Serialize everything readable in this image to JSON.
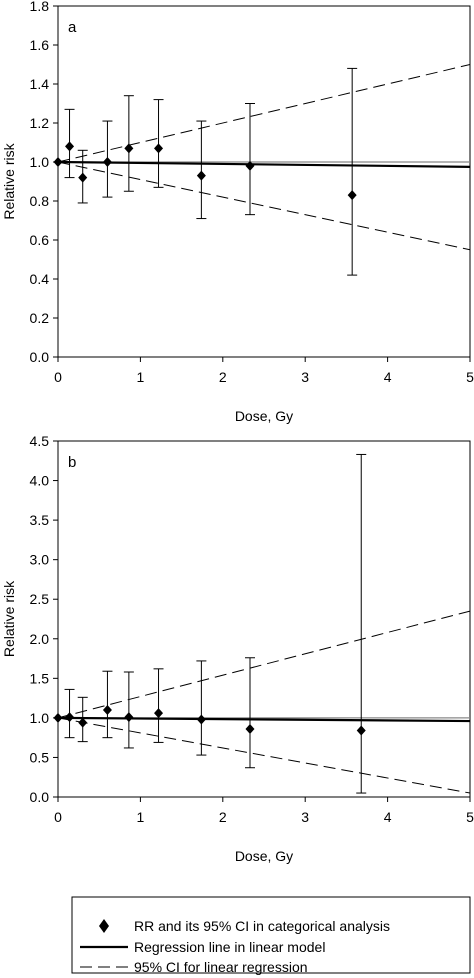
{
  "chart_data": [
    {
      "type": "scatter",
      "panel_label": "a",
      "xlabel": "Dose, Gy",
      "ylabel": "Relative risk",
      "xlim": [
        0,
        5
      ],
      "ylim": [
        0,
        1.8
      ],
      "x_ticks": [
        "0",
        "1",
        "2",
        "3",
        "4",
        "5"
      ],
      "y_ticks": [
        "0.0",
        "0.2",
        "0.4",
        "0.6",
        "0.8",
        "1.0",
        "1.2",
        "1.4",
        "1.6",
        "1.8"
      ],
      "grid": false,
      "categorical_points": [
        {
          "x": 0.0,
          "rr": 1.0,
          "lower": 1.0,
          "upper": 1.0
        },
        {
          "x": 0.14,
          "rr": 1.08,
          "lower": 0.92,
          "upper": 1.27
        },
        {
          "x": 0.3,
          "rr": 0.92,
          "lower": 0.79,
          "upper": 1.06
        },
        {
          "x": 0.6,
          "rr": 1.0,
          "lower": 0.82,
          "upper": 1.21
        },
        {
          "x": 0.86,
          "rr": 1.07,
          "lower": 0.85,
          "upper": 1.34
        },
        {
          "x": 1.22,
          "rr": 1.07,
          "lower": 0.87,
          "upper": 1.32
        },
        {
          "x": 1.74,
          "rr": 0.93,
          "lower": 0.71,
          "upper": 1.21
        },
        {
          "x": 2.33,
          "rr": 0.98,
          "lower": 0.73,
          "upper": 1.3
        },
        {
          "x": 3.57,
          "rr": 0.83,
          "lower": 0.42,
          "upper": 1.48
        }
      ],
      "reference_line": {
        "x": [
          0,
          5
        ],
        "y": [
          1.0,
          1.0
        ]
      },
      "regression_line": {
        "x": [
          0,
          5
        ],
        "y": [
          1.0,
          0.975
        ]
      },
      "ci_upper_line": {
        "x": [
          0,
          5
        ],
        "y": [
          1.0,
          1.5
        ]
      },
      "ci_lower_line": {
        "x": [
          0,
          5
        ],
        "y": [
          1.0,
          0.55
        ]
      }
    },
    {
      "type": "scatter",
      "panel_label": "b",
      "xlabel": "Dose, Gy",
      "ylabel": "Relative risk",
      "xlim": [
        0,
        5
      ],
      "ylim": [
        0,
        4.5
      ],
      "x_ticks": [
        "0",
        "1",
        "2",
        "3",
        "4",
        "5"
      ],
      "y_ticks": [
        "0.0",
        "0.5",
        "1.0",
        "1.5",
        "2.0",
        "2.5",
        "3.0",
        "3.5",
        "4.0",
        "4.5"
      ],
      "grid": false,
      "categorical_points": [
        {
          "x": 0.0,
          "rr": 1.0,
          "lower": 1.0,
          "upper": 1.0
        },
        {
          "x": 0.14,
          "rr": 1.01,
          "lower": 0.75,
          "upper": 1.36
        },
        {
          "x": 0.3,
          "rr": 0.94,
          "lower": 0.7,
          "upper": 1.26
        },
        {
          "x": 0.6,
          "rr": 1.1,
          "lower": 0.75,
          "upper": 1.59
        },
        {
          "x": 0.86,
          "rr": 1.01,
          "lower": 0.62,
          "upper": 1.58
        },
        {
          "x": 1.22,
          "rr": 1.06,
          "lower": 0.69,
          "upper": 1.62
        },
        {
          "x": 1.74,
          "rr": 0.98,
          "lower": 0.53,
          "upper": 1.72
        },
        {
          "x": 2.33,
          "rr": 0.86,
          "lower": 0.37,
          "upper": 1.76
        },
        {
          "x": 3.68,
          "rr": 0.84,
          "lower": 0.05,
          "upper": 4.33
        }
      ],
      "reference_line": {
        "x": [
          0,
          5
        ],
        "y": [
          1.0,
          1.0
        ]
      },
      "regression_line": {
        "x": [
          0,
          5
        ],
        "y": [
          1.0,
          0.96
        ]
      },
      "ci_upper_line": {
        "x": [
          0,
          5
        ],
        "y": [
          1.0,
          2.35
        ]
      },
      "ci_lower_line": {
        "x": [
          0,
          5
        ],
        "y": [
          1.0,
          0.05
        ]
      }
    }
  ],
  "legend": {
    "entries": [
      {
        "label": "RR and its 95% CI in categorical analysis",
        "style": "diamond"
      },
      {
        "label": "Regression line in linear model",
        "style": "solid"
      },
      {
        "label": "95% CI for linear regression",
        "style": "dashed"
      }
    ]
  },
  "colors": {
    "ink": "#000000",
    "reference_line": "#888888",
    "background": "#ffffff"
  }
}
